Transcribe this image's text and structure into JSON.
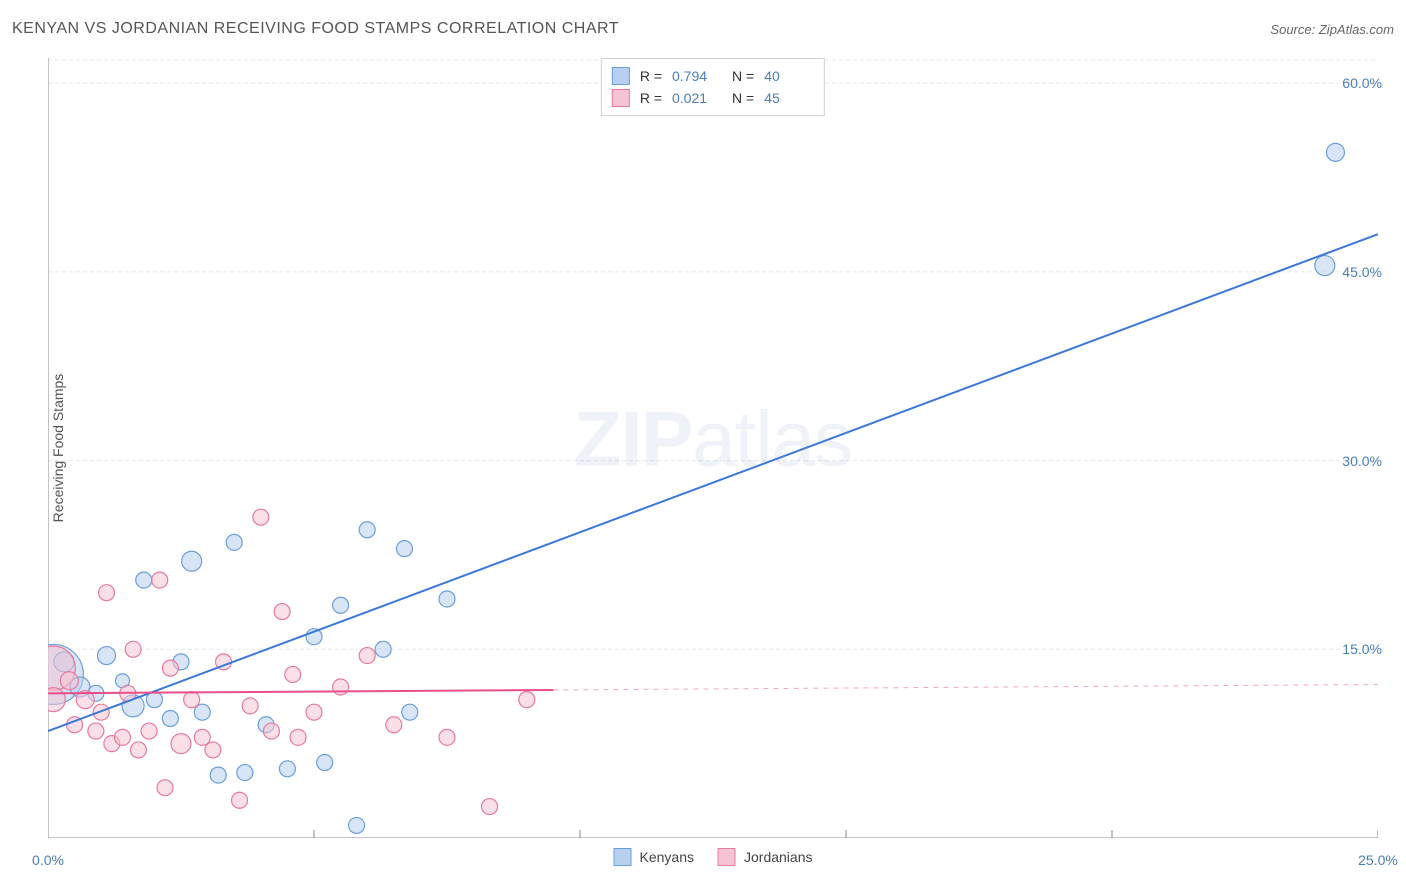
{
  "header": {
    "title": "KENYAN VS JORDANIAN RECEIVING FOOD STAMPS CORRELATION CHART",
    "source_label": "Source:",
    "source_name": "ZipAtlas.com"
  },
  "axes": {
    "ylabel": "Receiving Food Stamps",
    "xlim": [
      0,
      25
    ],
    "ylim": [
      0,
      62
    ],
    "xticks": [
      {
        "v": 0,
        "label": "0.0%"
      },
      {
        "v": 25,
        "label": "25.0%"
      }
    ],
    "xticks_minor": [
      5,
      10,
      15,
      20
    ],
    "yticks": [
      {
        "v": 15,
        "label": "15.0%"
      },
      {
        "v": 30,
        "label": "30.0%"
      },
      {
        "v": 45,
        "label": "45.0%"
      },
      {
        "v": 60,
        "label": "60.0%"
      }
    ],
    "axis_color": "#888888",
    "grid_color": "#e8e8e8",
    "grid_dash": "4,3"
  },
  "series": [
    {
      "name": "Kenyans",
      "fill": "#b8d0f0",
      "stroke": "#6a9edb",
      "line_color": "#3b78d8",
      "line_width": 2,
      "R": "0.794",
      "N": "40",
      "trend": {
        "x1": 0,
        "y1": 8.5,
        "x2": 25,
        "y2": 48
      },
      "trend_dashed": false,
      "points": [
        {
          "x": 0.1,
          "y": 13.0,
          "r": 30
        },
        {
          "x": 0.3,
          "y": 14.0,
          "r": 10
        },
        {
          "x": 0.6,
          "y": 12.0,
          "r": 10
        },
        {
          "x": 0.9,
          "y": 11.5,
          "r": 8
        },
        {
          "x": 1.1,
          "y": 14.5,
          "r": 9
        },
        {
          "x": 1.4,
          "y": 12.5,
          "r": 7
        },
        {
          "x": 1.6,
          "y": 10.5,
          "r": 11
        },
        {
          "x": 1.8,
          "y": 20.5,
          "r": 8
        },
        {
          "x": 2.0,
          "y": 11.0,
          "r": 8
        },
        {
          "x": 2.3,
          "y": 9.5,
          "r": 8
        },
        {
          "x": 2.5,
          "y": 14.0,
          "r": 8
        },
        {
          "x": 2.7,
          "y": 22.0,
          "r": 10
        },
        {
          "x": 2.9,
          "y": 10.0,
          "r": 8
        },
        {
          "x": 3.2,
          "y": 5.0,
          "r": 8
        },
        {
          "x": 3.5,
          "y": 23.5,
          "r": 8
        },
        {
          "x": 3.7,
          "y": 5.2,
          "r": 8
        },
        {
          "x": 4.1,
          "y": 9.0,
          "r": 8
        },
        {
          "x": 4.5,
          "y": 5.5,
          "r": 8
        },
        {
          "x": 5.0,
          "y": 16.0,
          "r": 8
        },
        {
          "x": 5.2,
          "y": 6.0,
          "r": 8
        },
        {
          "x": 5.5,
          "y": 18.5,
          "r": 8
        },
        {
          "x": 5.8,
          "y": 1.0,
          "r": 8
        },
        {
          "x": 6.0,
          "y": 24.5,
          "r": 8
        },
        {
          "x": 6.3,
          "y": 15.0,
          "r": 8
        },
        {
          "x": 6.7,
          "y": 23.0,
          "r": 8
        },
        {
          "x": 6.8,
          "y": 10.0,
          "r": 8
        },
        {
          "x": 7.5,
          "y": 19.0,
          "r": 8
        },
        {
          "x": 24.2,
          "y": 54.5,
          "r": 9
        },
        {
          "x": 24.0,
          "y": 45.5,
          "r": 10
        }
      ]
    },
    {
      "name": "Jordanians",
      "fill": "#f5c4d4",
      "stroke": "#e87aa0",
      "line_color": "#e94e8a",
      "line_width": 2,
      "R": "0.021",
      "N": "45",
      "trend": {
        "x1": 0,
        "y1": 11.5,
        "x2": 25,
        "y2": 12.2
      },
      "trend_dashed": true,
      "trend_solid_until_x": 9.5,
      "points": [
        {
          "x": 0.1,
          "y": 13.5,
          "r": 22
        },
        {
          "x": 0.1,
          "y": 11.0,
          "r": 12
        },
        {
          "x": 0.4,
          "y": 12.5,
          "r": 9
        },
        {
          "x": 0.5,
          "y": 9.0,
          "r": 8
        },
        {
          "x": 0.7,
          "y": 11.0,
          "r": 9
        },
        {
          "x": 0.9,
          "y": 8.5,
          "r": 8
        },
        {
          "x": 1.0,
          "y": 10.0,
          "r": 8
        },
        {
          "x": 1.1,
          "y": 19.5,
          "r": 8
        },
        {
          "x": 1.2,
          "y": 7.5,
          "r": 8
        },
        {
          "x": 1.4,
          "y": 8.0,
          "r": 8
        },
        {
          "x": 1.5,
          "y": 11.5,
          "r": 8
        },
        {
          "x": 1.6,
          "y": 15.0,
          "r": 8
        },
        {
          "x": 1.7,
          "y": 7.0,
          "r": 8
        },
        {
          "x": 1.9,
          "y": 8.5,
          "r": 8
        },
        {
          "x": 2.1,
          "y": 20.5,
          "r": 8
        },
        {
          "x": 2.2,
          "y": 4.0,
          "r": 8
        },
        {
          "x": 2.3,
          "y": 13.5,
          "r": 8
        },
        {
          "x": 2.5,
          "y": 7.5,
          "r": 10
        },
        {
          "x": 2.7,
          "y": 11.0,
          "r": 8
        },
        {
          "x": 2.9,
          "y": 8.0,
          "r": 8
        },
        {
          "x": 3.1,
          "y": 7.0,
          "r": 8
        },
        {
          "x": 3.3,
          "y": 14.0,
          "r": 8
        },
        {
          "x": 3.6,
          "y": 3.0,
          "r": 8
        },
        {
          "x": 3.8,
          "y": 10.5,
          "r": 8
        },
        {
          "x": 4.0,
          "y": 25.5,
          "r": 8
        },
        {
          "x": 4.2,
          "y": 8.5,
          "r": 8
        },
        {
          "x": 4.4,
          "y": 18.0,
          "r": 8
        },
        {
          "x": 4.6,
          "y": 13.0,
          "r": 8
        },
        {
          "x": 4.7,
          "y": 8.0,
          "r": 8
        },
        {
          "x": 5.0,
          "y": 10.0,
          "r": 8
        },
        {
          "x": 5.5,
          "y": 12.0,
          "r": 8
        },
        {
          "x": 6.0,
          "y": 14.5,
          "r": 8
        },
        {
          "x": 6.5,
          "y": 9.0,
          "r": 8
        },
        {
          "x": 7.5,
          "y": 8.0,
          "r": 8
        },
        {
          "x": 8.3,
          "y": 2.5,
          "r": 8
        },
        {
          "x": 9.0,
          "y": 11.0,
          "r": 8
        }
      ]
    }
  ],
  "legend_bottom": [
    {
      "label": "Kenyans",
      "fill": "#b8d0f0",
      "stroke": "#6a9edb"
    },
    {
      "label": "Jordanians",
      "fill": "#f5c4d4",
      "stroke": "#e87aa0"
    }
  ],
  "watermark": {
    "zip": "ZIP",
    "atlas": "atlas"
  }
}
